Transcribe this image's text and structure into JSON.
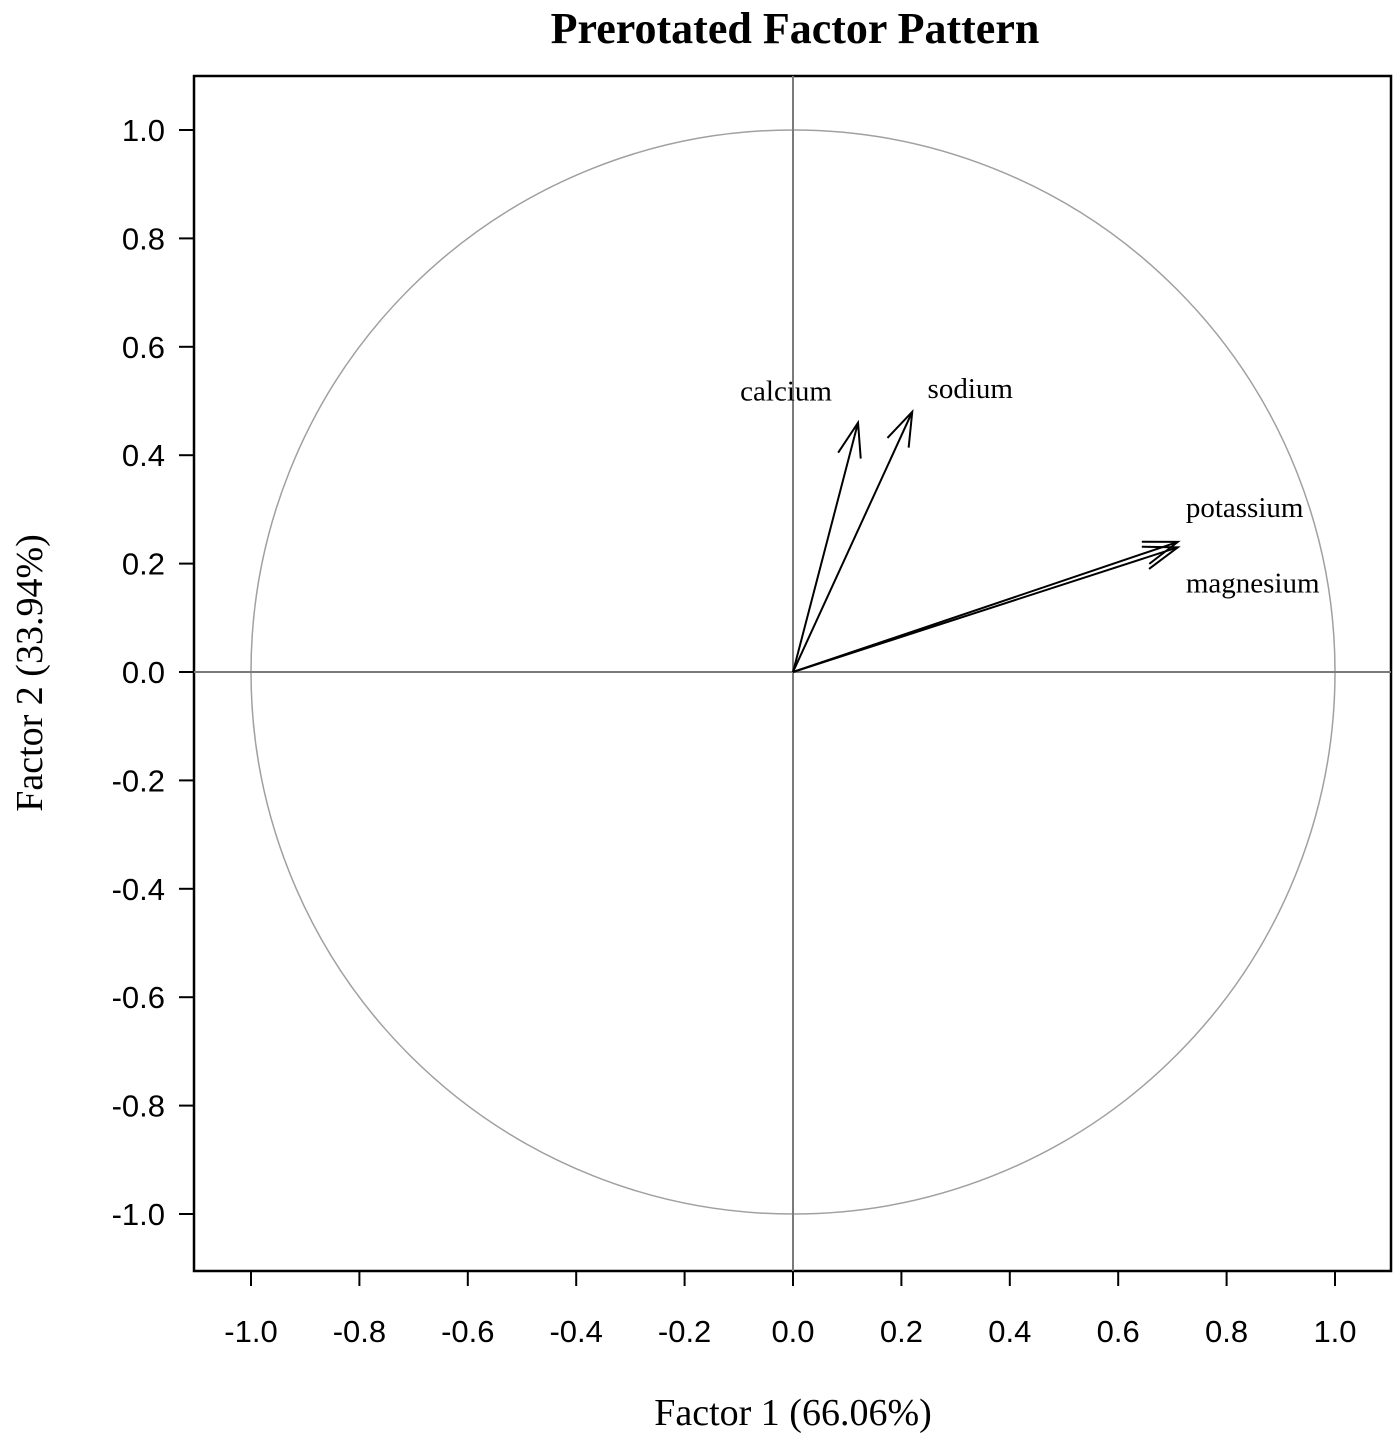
{
  "chart_data": {
    "type": "scatter",
    "title": "Prerotated Factor Pattern",
    "xlabel": "Factor 1 (66.06%)",
    "ylabel": "Factor 2 (33.94%)",
    "xlim": [
      -1.1,
      1.1
    ],
    "ylim": [
      -1.1,
      1.1
    ],
    "xticks": [
      "-1.0",
      "-0.8",
      "-0.6",
      "-0.4",
      "-0.2",
      "0.0",
      "0.2",
      "0.4",
      "0.6",
      "0.8",
      "1.0"
    ],
    "yticks": [
      "1.0",
      "0.8",
      "0.6",
      "0.4",
      "0.2",
      "0.0",
      "-0.2",
      "-0.4",
      "-0.6",
      "-0.8",
      "-1.0"
    ],
    "unit_circle": true,
    "reference_lines": {
      "x": 0,
      "y": 0
    },
    "vectors": [
      {
        "name": "calcium",
        "x": 0.12,
        "y": 0.46
      },
      {
        "name": "sodium",
        "x": 0.22,
        "y": 0.48
      },
      {
        "name": "potassium",
        "x": 0.71,
        "y": 0.24
      },
      {
        "name": "magnesium",
        "x": 0.71,
        "y": 0.23
      }
    ]
  }
}
